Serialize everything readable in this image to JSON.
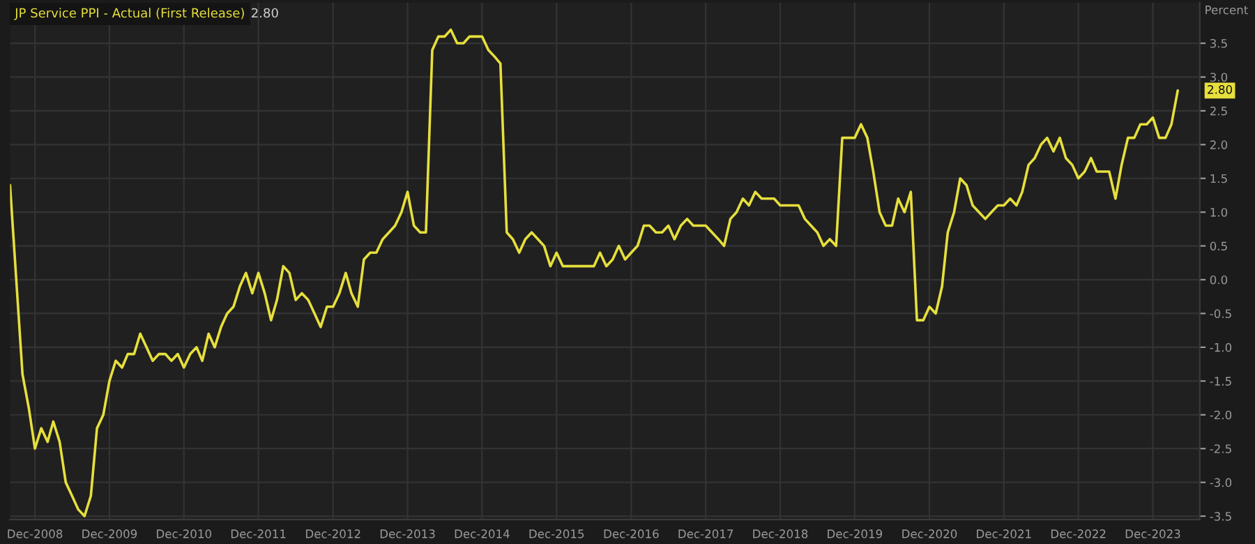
{
  "chart_data": {
    "type": "line",
    "ylabel": "Percent",
    "x": [
      "2008-08",
      "2008-10",
      "2008-11",
      "2008-12",
      "2009-01",
      "2009-02",
      "2009-03",
      "2009-04",
      "2009-05",
      "2009-06",
      "2009-07",
      "2009-08",
      "2009-09",
      "2009-10",
      "2009-11",
      "2009-12",
      "2010-01",
      "2010-02",
      "2010-03",
      "2010-04",
      "2010-05",
      "2010-06",
      "2010-07",
      "2010-08",
      "2010-09",
      "2010-10",
      "2010-11",
      "2010-12",
      "2011-01",
      "2011-02",
      "2011-03",
      "2011-04",
      "2011-05",
      "2011-06",
      "2011-07",
      "2011-08",
      "2011-09",
      "2011-10",
      "2011-11",
      "2011-12",
      "2012-01",
      "2012-02",
      "2012-03",
      "2012-04",
      "2012-05",
      "2012-06",
      "2012-07",
      "2012-08",
      "2012-09",
      "2012-10",
      "2012-11",
      "2012-12",
      "2013-01",
      "2013-02",
      "2013-03",
      "2013-04",
      "2013-05",
      "2013-06",
      "2013-07",
      "2013-08",
      "2013-09",
      "2013-10",
      "2013-11",
      "2013-12",
      "2014-01",
      "2014-02",
      "2014-03",
      "2014-04",
      "2014-05",
      "2014-06",
      "2014-07",
      "2014-08",
      "2014-09",
      "2014-10",
      "2014-11",
      "2014-12",
      "2015-01",
      "2015-02",
      "2015-03",
      "2015-04",
      "2015-05",
      "2015-06",
      "2015-07",
      "2015-08",
      "2015-09",
      "2015-10",
      "2015-11",
      "2015-12",
      "2016-01",
      "2016-02",
      "2016-03",
      "2016-04",
      "2016-05",
      "2016-06",
      "2016-07",
      "2016-08",
      "2016-09",
      "2016-10",
      "2016-11",
      "2016-12",
      "2017-01",
      "2017-02",
      "2017-03",
      "2017-04",
      "2017-05",
      "2017-06",
      "2017-07",
      "2017-08",
      "2017-09",
      "2017-10",
      "2017-11",
      "2017-12",
      "2018-01",
      "2018-02",
      "2018-03",
      "2018-04",
      "2018-05",
      "2018-06",
      "2018-07",
      "2018-08",
      "2018-09",
      "2018-10",
      "2018-11",
      "2018-12",
      "2019-01",
      "2019-02",
      "2019-03",
      "2019-04",
      "2019-05",
      "2019-06",
      "2019-07",
      "2019-08",
      "2019-09",
      "2019-10",
      "2019-11",
      "2019-12",
      "2020-01",
      "2020-02",
      "2020-03",
      "2020-04",
      "2020-05",
      "2020-06",
      "2020-07",
      "2020-08",
      "2020-09",
      "2020-10",
      "2020-11",
      "2020-12",
      "2021-01",
      "2021-02",
      "2021-03",
      "2021-04",
      "2021-05",
      "2021-06",
      "2021-07",
      "2021-08",
      "2021-09",
      "2021-10",
      "2021-11",
      "2021-12",
      "2022-01",
      "2022-02",
      "2022-03",
      "2022-04",
      "2022-05",
      "2022-06",
      "2022-07",
      "2022-08",
      "2022-09",
      "2022-10",
      "2022-11",
      "2022-12",
      "2023-01",
      "2023-02",
      "2023-03",
      "2023-04",
      "2023-05",
      "2023-06",
      "2023-07",
      "2023-08",
      "2023-09",
      "2023-10",
      "2023-11",
      "2023-12",
      "2024-01",
      "2024-02",
      "2024-03",
      "2024-04"
    ],
    "series": [
      {
        "name": "JP Service PPI - Actual (First Release)",
        "color": "#e6df3c",
        "values": [
          1.4,
          -1.4,
          -1.9,
          -2.5,
          -2.2,
          -2.4,
          -2.1,
          -2.4,
          -3.0,
          -3.2,
          -3.4,
          -3.5,
          -3.2,
          -2.2,
          -2.0,
          -1.5,
          -1.2,
          -1.3,
          -1.1,
          -1.1,
          -0.8,
          -1.0,
          -1.2,
          -1.1,
          -1.1,
          -1.2,
          -1.1,
          -1.3,
          -1.1,
          -1.0,
          -1.2,
          -0.8,
          -1.0,
          -0.7,
          -0.5,
          -0.4,
          -0.1,
          0.1,
          -0.2,
          0.1,
          -0.2,
          -0.6,
          -0.3,
          0.2,
          0.1,
          -0.3,
          -0.2,
          -0.3,
          -0.5,
          -0.7,
          -0.4,
          -0.4,
          -0.2,
          0.1,
          -0.2,
          -0.4,
          0.3,
          0.4,
          0.4,
          0.6,
          0.7,
          0.8,
          1.0,
          1.3,
          0.8,
          0.7,
          0.7,
          3.4,
          3.6,
          3.6,
          3.7,
          3.5,
          3.5,
          3.6,
          3.6,
          3.6,
          3.4,
          3.3,
          3.2,
          0.7,
          0.6,
          0.4,
          0.6,
          0.7,
          0.6,
          0.5,
          0.2,
          0.4,
          0.2,
          0.2,
          0.2,
          0.2,
          0.2,
          0.2,
          0.4,
          0.2,
          0.3,
          0.5,
          0.3,
          0.4,
          0.5,
          0.8,
          0.8,
          0.7,
          0.7,
          0.8,
          0.6,
          0.8,
          0.9,
          0.8,
          0.8,
          0.8,
          0.7,
          0.6,
          0.5,
          0.9,
          1.0,
          1.2,
          1.1,
          1.3,
          1.2,
          1.2,
          1.2,
          1.1,
          1.1,
          1.1,
          1.1,
          0.9,
          0.8,
          0.7,
          0.5,
          0.6,
          0.5,
          2.1,
          2.1,
          2.1,
          2.3,
          2.1,
          1.6,
          1.0,
          0.8,
          0.8,
          1.2,
          1.0,
          1.3,
          -0.6,
          -0.6,
          -0.4,
          -0.5,
          -0.1,
          0.7,
          1.0,
          1.5,
          1.4,
          1.1,
          1.0,
          0.9,
          1.0,
          1.1,
          1.1,
          1.2,
          1.1,
          1.3,
          1.7,
          1.8,
          2.0,
          2.1,
          1.9,
          2.1,
          1.8,
          1.7,
          1.5,
          1.6,
          1.8,
          1.6,
          1.6,
          1.6,
          1.2,
          1.7,
          2.1,
          2.1,
          2.3,
          2.3,
          2.4,
          2.1,
          2.1,
          2.3,
          2.8
        ]
      }
    ],
    "annotations": [
      {
        "text": "2.80",
        "x": "2024-04",
        "y": 2.8
      },
      "2.80"
    ],
    "xlim": [
      "2008-08",
      "2024-07-18"
    ],
    "xticks": [
      {
        "value": "2008-12",
        "label": "Dec-2008"
      },
      {
        "value": "2009-12",
        "label": "Dec-2009"
      },
      {
        "value": "2010-12",
        "label": "Dec-2010"
      },
      {
        "value": "2011-12",
        "label": "Dec-2011"
      },
      {
        "value": "2012-12",
        "label": "Dec-2012"
      },
      {
        "value": "2013-12",
        "label": "Dec-2013"
      },
      {
        "value": "2014-12",
        "label": "Dec-2014"
      },
      {
        "value": "2015-12",
        "label": "Dec-2015"
      },
      {
        "value": "2016-12",
        "label": "Dec-2016"
      },
      {
        "value": "2017-12",
        "label": "Dec-2017"
      },
      {
        "value": "2018-12",
        "label": "Dec-2018"
      },
      {
        "value": "2019-12",
        "label": "Dec-2019"
      },
      {
        "value": "2020-12",
        "label": "Dec-2020"
      },
      {
        "value": "2021-12",
        "label": "Dec-2021"
      },
      {
        "value": "2022-12",
        "label": "Dec-2022"
      },
      {
        "value": "2023-12",
        "label": "Dec-2023"
      }
    ],
    "ylim": [
      -3.55,
      4.1
    ],
    "yticks": [
      {
        "value": -3.5,
        "label": "-3.5"
      },
      {
        "value": -3,
        "label": "-3.0"
      },
      {
        "value": -2.5,
        "label": "-2.5"
      },
      {
        "value": -2,
        "label": "-2.0"
      },
      {
        "value": -1.5,
        "label": "-1.5"
      },
      {
        "value": -1,
        "label": "-1.0"
      },
      {
        "value": -0.5,
        "label": "-0.5"
      },
      {
        "value": 0,
        "label": "0.0"
      },
      {
        "value": 0.5,
        "label": "0.5"
      },
      {
        "value": 1,
        "label": "1.0"
      },
      {
        "value": 1.5,
        "label": "1.5"
      },
      {
        "value": 2,
        "label": "2.0"
      },
      {
        "value": 2.5,
        "label": "2.5"
      },
      {
        "value": 3,
        "label": "3.0"
      },
      {
        "value": 3.5,
        "label": "3.5"
      }
    ],
    "grid": true,
    "legend": "top left"
  }
}
